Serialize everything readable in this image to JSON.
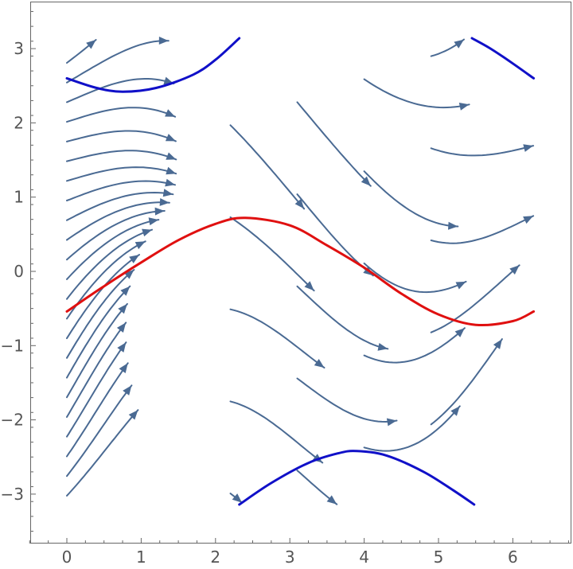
{
  "chart_data": {
    "type": "streamplot",
    "title": "",
    "xlabel": "",
    "ylabel": "",
    "xlim": [
      -0.5,
      6.75
    ],
    "ylim": [
      -3.6,
      3.6
    ],
    "x_ticks": [
      {
        "value": 0,
        "label": "0"
      },
      {
        "value": 1,
        "label": "1"
      },
      {
        "value": 2,
        "label": "2"
      },
      {
        "value": 3,
        "label": "3"
      },
      {
        "value": 4,
        "label": "4"
      },
      {
        "value": 5,
        "label": "5"
      },
      {
        "value": 6,
        "label": "6"
      }
    ],
    "y_ticks": [
      {
        "value": -3,
        "label": "−3"
      },
      {
        "value": -2,
        "label": "−2"
      },
      {
        "value": -1,
        "label": "−1"
      },
      {
        "value": 0,
        "label": "0"
      },
      {
        "value": 1,
        "label": "1"
      },
      {
        "value": 2,
        "label": "2"
      },
      {
        "value": 3,
        "label": "3"
      }
    ],
    "stream_region": {
      "x": [
        0,
        6.283
      ],
      "y": [
        -3.14159,
        3.14159
      ]
    },
    "grid": false,
    "legend": "none",
    "colors": {
      "streamlines": "#4a6a93",
      "highlight_red": "#e01010",
      "highlight_blue": "#1010c8",
      "frame": "#666666"
    },
    "highlighted_curves": [
      {
        "color": "red",
        "points": [
          [
            0,
            -0.54
          ],
          [
            0.5,
            -0.2
          ],
          [
            1,
            0.12
          ],
          [
            1.5,
            0.42
          ],
          [
            2,
            0.64
          ],
          [
            2.4,
            0.72
          ],
          [
            3,
            0.62
          ],
          [
            3.5,
            0.35
          ],
          [
            4,
            0.05
          ],
          [
            4.5,
            -0.3
          ],
          [
            5,
            -0.58
          ],
          [
            5.5,
            -0.72
          ],
          [
            6,
            -0.67
          ],
          [
            6.28,
            -0.54
          ]
        ]
      },
      {
        "color": "blue",
        "points": [
          [
            0,
            2.6
          ],
          [
            0.4,
            2.47
          ],
          [
            0.75,
            2.42
          ],
          [
            1.2,
            2.47
          ],
          [
            1.7,
            2.65
          ],
          [
            2.0,
            2.85
          ],
          [
            2.32,
            3.14
          ]
        ]
      },
      {
        "color": "blue",
        "points": [
          [
            5.45,
            3.14
          ],
          [
            5.7,
            3.0
          ],
          [
            6.0,
            2.8
          ],
          [
            6.28,
            2.6
          ]
        ]
      },
      {
        "color": "blue",
        "points": [
          [
            2.32,
            -3.14
          ],
          [
            2.75,
            -2.85
          ],
          [
            3.25,
            -2.58
          ],
          [
            3.65,
            -2.45
          ],
          [
            3.9,
            -2.42
          ],
          [
            4.3,
            -2.48
          ],
          [
            4.8,
            -2.7
          ],
          [
            5.2,
            -2.95
          ],
          [
            5.48,
            -3.14
          ]
        ]
      }
    ]
  }
}
